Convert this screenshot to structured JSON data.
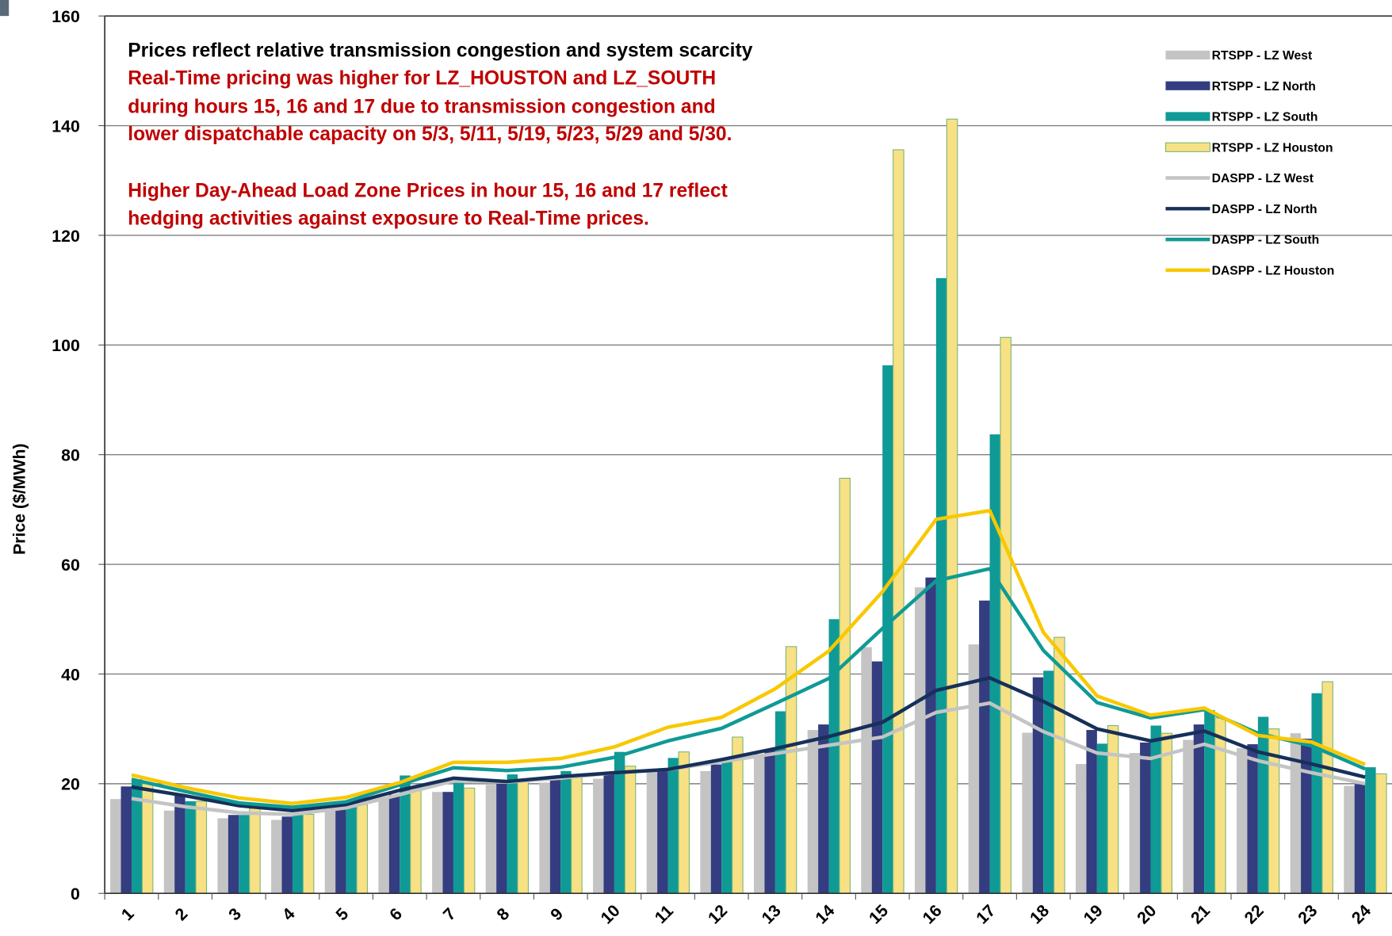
{
  "chart_data": {
    "type": "bar",
    "ylabel": "Price ($/MWh)",
    "ylim": [
      0,
      160
    ],
    "yticks": [
      0,
      20,
      40,
      60,
      80,
      100,
      120,
      140,
      160
    ],
    "grid": true,
    "legend": "upper right",
    "annotations": [
      {
        "text": "Prices reflect relative transmission congestion and system scarcity",
        "color": "#000000"
      },
      {
        "text": "Real-Time pricing was higher for LZ_HOUSTON and LZ_SOUTH",
        "color": "#c00000"
      },
      {
        "text": "during hours 15, 16 and 17 due to transmission congestion and",
        "color": "#c00000"
      },
      {
        "text": "lower dispatchable capacity on 5/3, 5/11, 5/19, 5/23, 5/29 and 5/30.",
        "color": "#c00000"
      },
      {
        "text": "Higher Day-Ahead Load Zone Prices in hour 15,  16 and 17 reflect",
        "color": "#c00000"
      },
      {
        "text": "hedging activities against exposure to Real-Time prices.",
        "color": "#c00000"
      }
    ],
    "categories": [
      "1",
      "2",
      "3",
      "4",
      "5",
      "6",
      "7",
      "8",
      "9",
      "10",
      "11",
      "12",
      "13",
      "14",
      "15",
      "16",
      "17",
      "18",
      "19",
      "20",
      "21",
      "22",
      "23",
      "24"
    ],
    "series": [
      {
        "name": "RTSPP - LZ West",
        "mark": "bar",
        "color": "#c4c4c4",
        "values": [
          17.2,
          15.1,
          13.7,
          13.4,
          15.3,
          17.5,
          18.5,
          19.8,
          20.2,
          20.9,
          22.4,
          22.3,
          25.4,
          29.8,
          44.9,
          55.8,
          45.4,
          29.3,
          23.6,
          25.6,
          28,
          26.5,
          29.2,
          19.6
        ]
      },
      {
        "name": "RTSPP - LZ North",
        "mark": "bar",
        "color": "#333d80",
        "values": [
          19.5,
          17.8,
          14.3,
          14,
          15.5,
          18,
          18.5,
          20,
          20.8,
          21.7,
          22.5,
          23.5,
          26.3,
          30.8,
          42.3,
          57.6,
          53.4,
          39.4,
          29.8,
          27.5,
          30.8,
          27.2,
          28.2,
          19.9
        ]
      },
      {
        "name": "RTSPP - LZ South",
        "mark": "bar",
        "color": "#0f9a96",
        "values": [
          20.8,
          16.8,
          14.3,
          14.3,
          16,
          21.5,
          20.3,
          21.7,
          22.3,
          25.8,
          24.7,
          24.6,
          33.2,
          50,
          96.3,
          112.2,
          83.7,
          40.6,
          27.3,
          30.6,
          33.4,
          32.2,
          36.5,
          23
        ]
      },
      {
        "name": "RTSPP - LZ Houston",
        "mark": "bar",
        "color": "#f7e184",
        "values": [
          20,
          16.8,
          15.5,
          14.4,
          16.2,
          19.3,
          19.2,
          20.4,
          21.4,
          23.2,
          25.8,
          28.5,
          45,
          75.7,
          135.6,
          141.2,
          101.4,
          46.7,
          30.6,
          29.2,
          32,
          30,
          38.6,
          21.8
        ]
      },
      {
        "name": "DASPP - LZ West",
        "mark": "line",
        "color": "#c4c4c4",
        "values": [
          17.3,
          15.8,
          14.7,
          14.4,
          15.6,
          18,
          20.5,
          20.3,
          21,
          22,
          22.6,
          24,
          25.5,
          27,
          28.5,
          33,
          34.7,
          29.5,
          25.6,
          24.6,
          27.2,
          24.2,
          22,
          20
        ]
      },
      {
        "name": "DASPP - LZ North",
        "mark": "line",
        "color": "#17305a",
        "values": [
          19.4,
          17.8,
          16,
          15.1,
          16.2,
          18.8,
          21,
          20.4,
          21.3,
          22,
          22.6,
          24.4,
          26.4,
          28.6,
          31.2,
          37,
          39.3,
          35,
          30,
          27.8,
          29.6,
          25.8,
          23.6,
          21.2
        ]
      },
      {
        "name": "DASPP - LZ South",
        "mark": "line",
        "color": "#0f9a96",
        "values": [
          20.8,
          18.6,
          16.5,
          15.7,
          16.7,
          19.8,
          22.9,
          22.4,
          23,
          24.8,
          27.8,
          30.1,
          34.6,
          39.2,
          48.3,
          57,
          59.2,
          44.3,
          34.8,
          32,
          33.5,
          29.2,
          26.9,
          22.7
        ]
      },
      {
        "name": "DASPP - LZ Houston",
        "mark": "line",
        "color": "#f8c800",
        "values": [
          21.6,
          19.3,
          17.4,
          16.4,
          17.5,
          20.2,
          23.9,
          23.9,
          24.6,
          26.7,
          30.3,
          32.1,
          37.3,
          44.2,
          55,
          68.2,
          69.8,
          47.6,
          36,
          32.5,
          33.8,
          28.8,
          27.6,
          23.5
        ]
      }
    ]
  }
}
